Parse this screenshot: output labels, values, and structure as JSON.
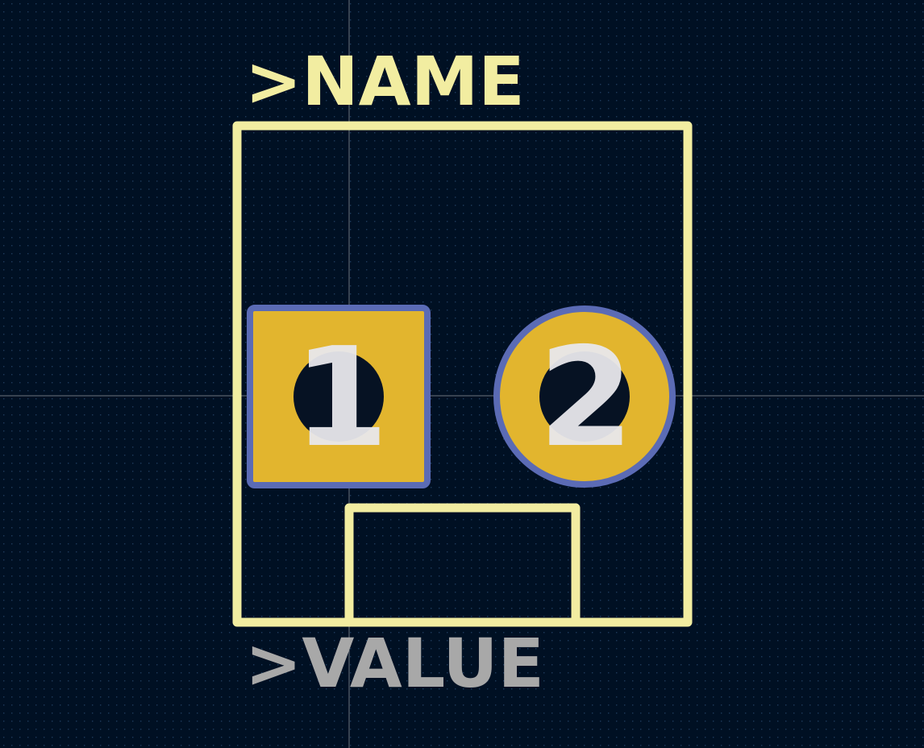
{
  "colors": {
    "background": "#001023",
    "grid_dot": "#1e3a5a",
    "crosshair": "#c8c8c8",
    "silkscreen": "#f2eda1",
    "pad_copper": "#e2b52e",
    "pad_outline": "#5b6bb5",
    "drill_hole": "#061223",
    "pad_number": "#e8e8ec",
    "value_text": "#a8a8a8"
  },
  "labels": {
    "name": ">NAME",
    "value": ">VALUE"
  },
  "pads": [
    {
      "number": "1",
      "shape": "square"
    },
    {
      "number": "2",
      "shape": "round"
    }
  ]
}
